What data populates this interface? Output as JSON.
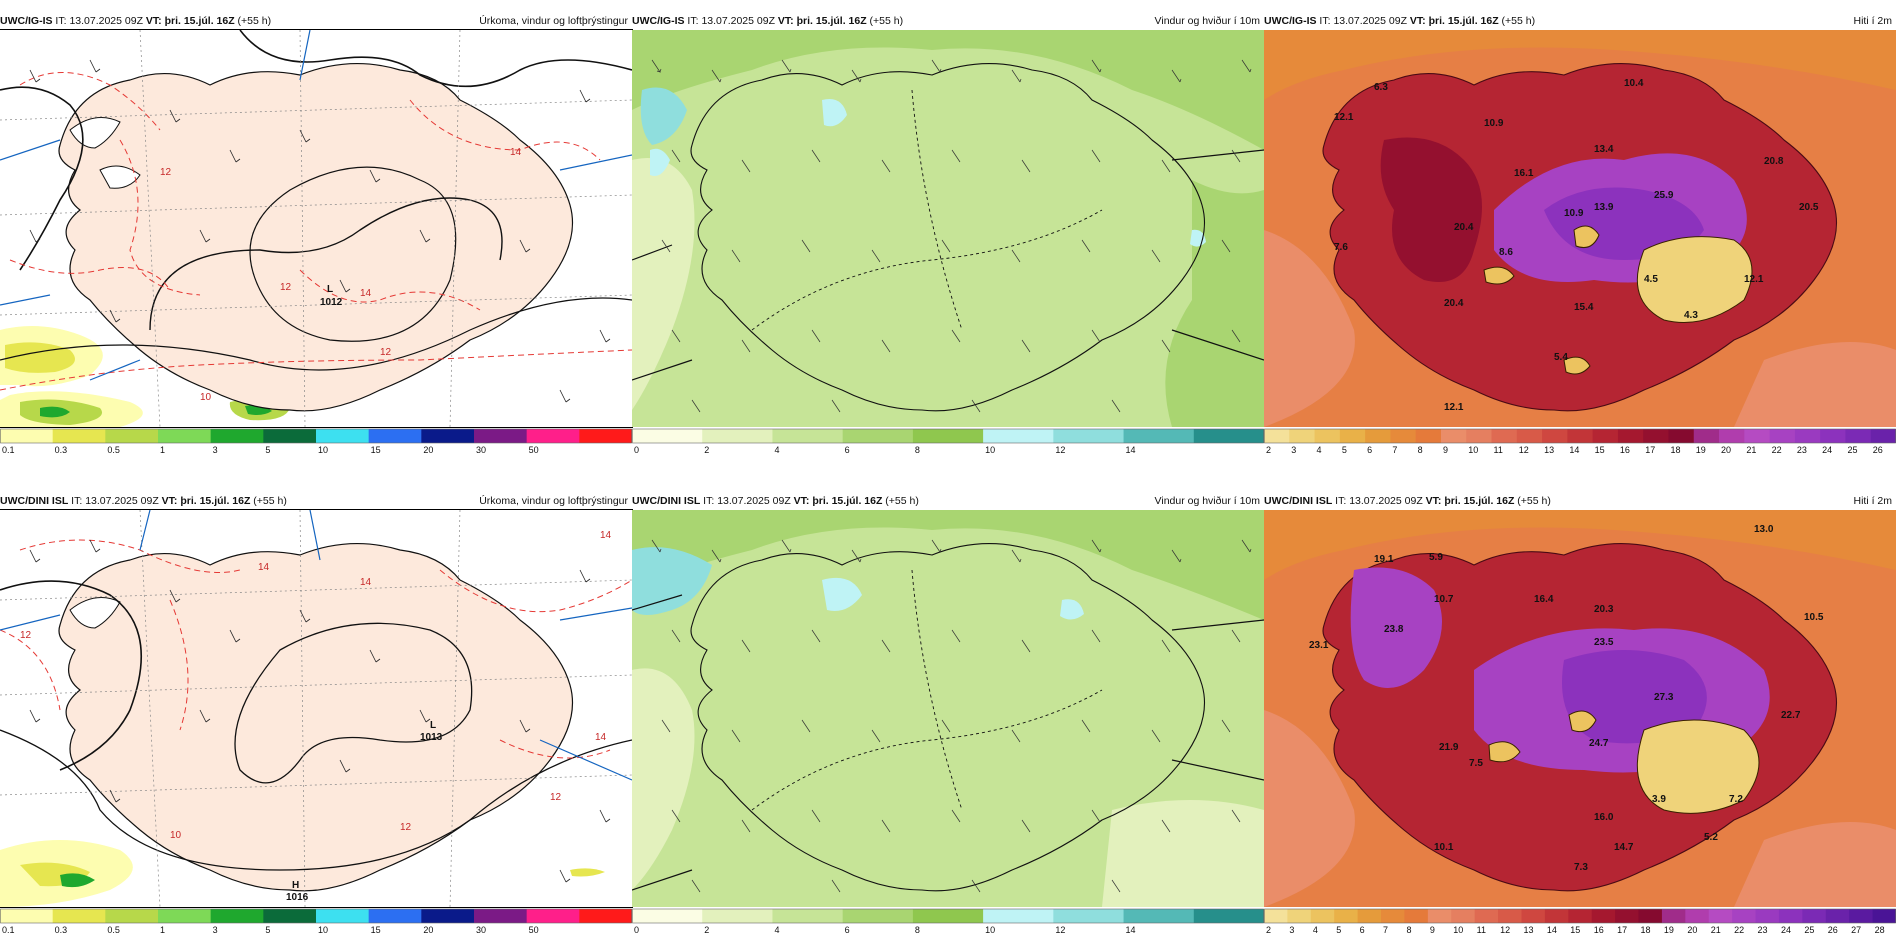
{
  "rows": [
    {
      "model": "UWC/IG-IS",
      "it_label": "IT:",
      "it_value": "13.07.2025 09Z",
      "vt_label": "VT:",
      "vt_value": "þri. 15.júl. 16Z",
      "lead": "(+55 h)",
      "pressure_low": "1012",
      "pressure_high": "",
      "pressure_low_mark": "L",
      "pressure_high_mark": ""
    },
    {
      "model": "UWC/DINI ISL",
      "it_label": "IT:",
      "it_value": "13.07.2025 09Z",
      "vt_label": "VT:",
      "vt_value": "þri. 15.júl. 16Z",
      "lead": "(+55 h)",
      "pressure_low": "1013",
      "pressure_high": "1016",
      "pressure_low_mark": "L",
      "pressure_high_mark": "H"
    }
  ],
  "panel_titles": {
    "precip": "Úrkoma, vindur og loftþrýstingur",
    "wind": "Vindur og hviður í 10m",
    "temp": "Hiti í 2m"
  },
  "isobar_labels": [
    "1016",
    "1014",
    "1012"
  ],
  "temperature_labels": {
    "row1": [
      "6.3",
      "10.4",
      "12.1",
      "10.9",
      "13.4",
      "20.8",
      "16.1",
      "25.9",
      "20.5",
      "10.9",
      "13.9",
      "20.4",
      "7.6",
      "8.6",
      "4.5",
      "12.1",
      "20.4",
      "15.4",
      "4.3",
      "5.4",
      "12.1"
    ],
    "row2": [
      "13.0",
      "19.1",
      "5.9",
      "10.7",
      "16.4",
      "20.3",
      "10.5",
      "23.8",
      "23.5",
      "27.3",
      "22.7",
      "21.9",
      "24.7",
      "7.5",
      "3.9",
      "7.2",
      "16.0",
      "5.2",
      "10.1",
      "14.7",
      "7.3",
      "23.1"
    ]
  },
  "colorbars": {
    "precip": {
      "ticks": [
        "0.1",
        "0.3",
        "0.5",
        "1",
        "3",
        "5",
        "10",
        "15",
        "20",
        "30",
        "50"
      ],
      "colors": [
        "#fdfdb0",
        "#e6e650",
        "#b7d84a",
        "#7ed957",
        "#1fa82e",
        "#0b6b3a",
        "#3de0f0",
        "#2c6ff2",
        "#0a1a8a",
        "#7b1a86",
        "#ff1f8a",
        "#ff1a1a"
      ]
    },
    "wind": {
      "ticks": [
        "0",
        "2",
        "4",
        "6",
        "8",
        "10",
        "12",
        "14"
      ],
      "colors": [
        "#fbfde4",
        "#e3f1bd",
        "#c6e497",
        "#a9d571",
        "#8fc74e",
        "#bff3f5",
        "#8fdedd",
        "#54b9b6",
        "#268f8b"
      ]
    },
    "temp_row1": {
      "ticks": [
        "2",
        "3",
        "4",
        "5",
        "6",
        "7",
        "8",
        "9",
        "10",
        "11",
        "12",
        "13",
        "14",
        "15",
        "16",
        "17",
        "18",
        "19",
        "20",
        "21",
        "22",
        "23",
        "24",
        "25",
        "26"
      ]
    },
    "temp_row2": {
      "ticks": [
        "2",
        "3",
        "4",
        "5",
        "6",
        "7",
        "8",
        "9",
        "10",
        "11",
        "12",
        "13",
        "14",
        "15",
        "16",
        "17",
        "18",
        "19",
        "20",
        "21",
        "22",
        "23",
        "24",
        "25",
        "26",
        "27",
        "28"
      ]
    },
    "temp_colors": [
      "#f4e19a",
      "#efd37a",
      "#ecc35f",
      "#e9b148",
      "#e59b3b",
      "#e68a3a",
      "#e57a3a",
      "#ea8d69",
      "#e57f60",
      "#df6a52",
      "#d85a48",
      "#cf4740",
      "#c23538",
      "#b52533",
      "#a5182f",
      "#94102f",
      "#850a2f",
      "#a02c8a",
      "#b03dad",
      "#b54bc2",
      "#a742c2",
      "#9a3ac0",
      "#8c32bd",
      "#7b2ab5",
      "#6a22aa",
      "#5a1aa0",
      "#4a1496",
      "#3a0e8c"
    ]
  }
}
